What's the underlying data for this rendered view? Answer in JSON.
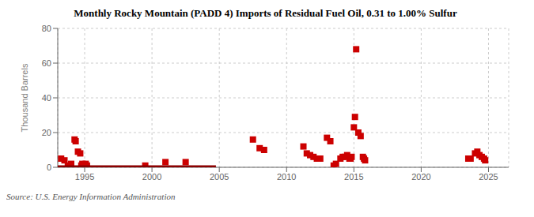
{
  "chart_data": {
    "type": "scatter",
    "title": "Monthly Rocky Mountain (PADD 4) Imports of Residual Fuel Oil, 0.31 to 1.00% Sulfur",
    "ylabel": "Thousand Barrels",
    "annotations": [
      "Source: U.S. Energy Information Administration"
    ],
    "xlim": [
      1993.0,
      2026.5
    ],
    "ylim": [
      0,
      80
    ],
    "xticks": [
      1995,
      2000,
      2005,
      2010,
      2015,
      2020,
      2025
    ],
    "yticks": [
      0,
      20,
      40,
      60,
      80
    ],
    "grid": true,
    "series": [
      {
        "type": "scatter",
        "color": "#CC0000",
        "marker": "square",
        "x": [
          1993.25,
          1993.5,
          1993.75,
          1994.0,
          1994.25,
          1994.33,
          1994.5,
          1994.67,
          1994.75,
          1994.83,
          1994.92,
          1995.0,
          1995.08,
          1995.17,
          1999.5,
          2001.0,
          2002.5,
          2007.5,
          2008.0,
          2008.33,
          2011.25,
          2011.5,
          2011.75,
          2012.0,
          2012.25,
          2012.5,
          2013.0,
          2013.25,
          2013.5,
          2013.67,
          2014.0,
          2014.17,
          2014.33,
          2014.5,
          2014.67,
          2014.75,
          2014.83,
          2015.0,
          2015.08,
          2015.17,
          2015.33,
          2015.5,
          2015.67,
          2015.75,
          2015.83,
          2023.5,
          2023.67,
          2024.0,
          2024.17,
          2024.33,
          2024.5,
          2024.67,
          2024.75
        ],
        "values": [
          5,
          4,
          1,
          2,
          16,
          15,
          9,
          8,
          1,
          2,
          1,
          1,
          2,
          1,
          1,
          3,
          3,
          16,
          11,
          10,
          12,
          8,
          7,
          6,
          5,
          5,
          17,
          15,
          1,
          2,
          5,
          6,
          6,
          7,
          5,
          5,
          6,
          23,
          29,
          68,
          20,
          18,
          6,
          5,
          4,
          5,
          5,
          8,
          9,
          7,
          6,
          5,
          4
        ]
      },
      {
        "type": "line",
        "color": "#8B0000",
        "line_style": "solid",
        "x": [
          1993.0,
          2004.75
        ],
        "values": [
          0.4,
          0.4
        ]
      }
    ]
  }
}
